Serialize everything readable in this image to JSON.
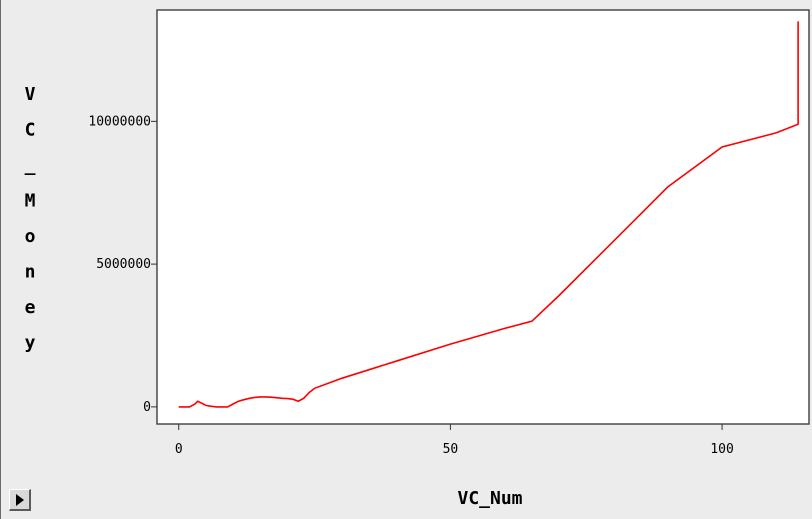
{
  "chart_data": {
    "type": "line",
    "xlabel": "VC_Num",
    "ylabel": "VC_Money",
    "xlim": [
      -4,
      116
    ],
    "ylim": [
      -600000,
      13900000
    ],
    "xticks": [
      0,
      50,
      100
    ],
    "xtick_labels": [
      "0",
      "50",
      "100"
    ],
    "yticks": [
      0,
      5000000,
      10000000
    ],
    "ytick_labels": [
      "0",
      "5000000",
      "10000000"
    ],
    "grid": false,
    "line_color": "#ff0000",
    "background": "#ffffff",
    "series": [
      {
        "x": [
          0,
          1,
          2,
          3,
          3.5,
          4,
          4.5,
          5,
          6,
          7,
          8,
          9,
          10,
          11,
          12,
          13,
          14,
          15,
          16,
          17,
          18,
          19,
          20,
          21,
          22,
          23,
          24,
          25,
          30,
          40,
          50,
          60,
          65,
          70,
          80,
          90,
          100,
          110,
          114,
          114,
          114
        ],
        "y": [
          0,
          0,
          0,
          100000,
          200000,
          150000,
          100000,
          50000,
          20000,
          0,
          0,
          0,
          100000,
          200000,
          250000,
          300000,
          330000,
          350000,
          350000,
          340000,
          320000,
          300000,
          290000,
          270000,
          200000,
          300000,
          500000,
          650000,
          1000000,
          1600000,
          2200000,
          2750000,
          3000000,
          3900000,
          5800000,
          7700000,
          9100000,
          9600000,
          9900000,
          12500000,
          13500000
        ]
      }
    ]
  },
  "controls": {
    "expand_icon": "play-triangle-icon"
  }
}
